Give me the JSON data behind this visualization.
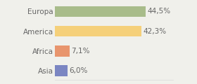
{
  "categories": [
    "Europa",
    "America",
    "Africa",
    "Asia"
  ],
  "values": [
    44.5,
    42.3,
    7.1,
    6.0
  ],
  "labels": [
    "44,5%",
    "42,3%",
    "7,1%",
    "6,0%"
  ],
  "bar_colors": [
    "#a8bc8a",
    "#f5d07a",
    "#e8956d",
    "#7b86c2"
  ],
  "background_color": "#f0f0eb",
  "xlim": [
    0,
    58
  ],
  "bar_height": 0.55,
  "label_fontsize": 7.5,
  "tick_fontsize": 7.5,
  "label_color": "#666666",
  "grid_color": "#d8d8d8"
}
